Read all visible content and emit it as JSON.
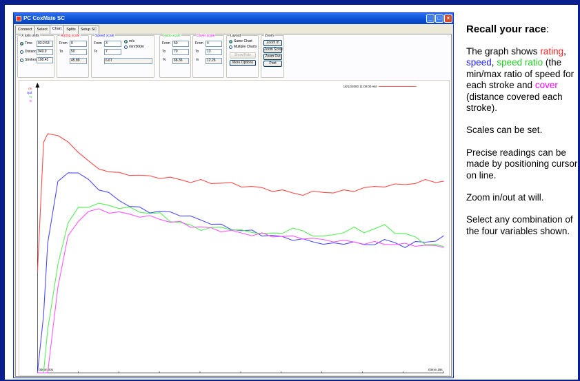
{
  "window": {
    "title": "PC CoxMate SC",
    "tabs": [
      "Connect",
      "Select",
      "Chart",
      "Splits",
      "Setup SC"
    ],
    "active_tab": "Chart"
  },
  "controls": {
    "x_axis": {
      "label": "X axis units",
      "options": [
        {
          "label": "Time",
          "value": "03:2:53",
          "selected": true
        },
        {
          "label": "Distance",
          "value": "949.9",
          "selected": false
        },
        {
          "label": "Strokes",
          "value": "108.45",
          "selected": false
        }
      ]
    },
    "rating_scale": {
      "label": "Rating scale",
      "from_label": "From",
      "from": "0",
      "to_label": "To",
      "to": "50",
      "readout": "45.89"
    },
    "speed_scale": {
      "label": "Speed scale",
      "from_label": "From",
      "from": "3",
      "to_label": "To",
      "to": "7",
      "readout": "6.67",
      "units": [
        "m/s",
        "min/500m"
      ]
    },
    "ratio_scale": {
      "label": "Ratio scale",
      "from_label": "From",
      "from": "50",
      "to_label": "To",
      "to": "70",
      "pct_label": "%",
      "readout": "68.36"
    },
    "cover_scale": {
      "label": "Cover scale",
      "from_label": "From",
      "from": "4",
      "to_label": "To",
      "to": "13",
      "m_label": "m",
      "readout": "12.26"
    },
    "layout": {
      "label": "Layout",
      "options": [
        "Same Chart",
        "Multiple Charts"
      ],
      "show_hide": "Show/Hide",
      "more": "More Options"
    },
    "zoom": {
      "label": "Zoom",
      "buttons": [
        "Zoom In",
        "Zoom Scroll",
        "Zoom Out",
        "Print"
      ]
    }
  },
  "chart_data": {
    "type": "line",
    "title": "",
    "timestamp": "18/12/2000 11:00:00 AM",
    "legend": [
      "rtn",
      "spd",
      "%",
      "m"
    ],
    "x_start_label": "00min 00s",
    "x_end_label": "03min 19s",
    "x_range_s": [
      0,
      199
    ],
    "x": [
      0,
      3,
      5,
      10,
      15,
      20,
      25,
      30,
      35,
      40,
      45,
      50,
      55,
      60,
      65,
      70,
      75,
      80,
      85,
      90,
      95,
      100,
      105,
      110,
      115,
      120,
      125,
      130,
      135,
      140,
      145,
      150,
      155,
      160,
      165,
      170,
      175,
      180,
      185,
      190,
      195,
      199
    ],
    "series": [
      {
        "name": "rtn",
        "color": "#ff4a4a",
        "values": [
          0.35,
          0.8,
          0.83,
          0.82,
          0.8,
          0.77,
          0.73,
          0.71,
          0.7,
          0.69,
          0.69,
          0.685,
          0.68,
          0.68,
          0.675,
          0.67,
          0.665,
          0.665,
          0.66,
          0.66,
          0.655,
          0.65,
          0.645,
          0.64,
          0.635,
          0.63,
          0.625,
          0.62,
          0.625,
          0.63,
          0.625,
          0.63,
          0.635,
          0.64,
          0.645,
          0.65,
          0.65,
          0.655,
          0.66,
          0.665,
          0.665,
          0.665
        ]
      },
      {
        "name": "spd",
        "color": "#4a4aff",
        "values": [
          0.0,
          0.2,
          0.45,
          0.66,
          0.7,
          0.69,
          0.67,
          0.64,
          0.62,
          0.6,
          0.58,
          0.57,
          0.56,
          0.56,
          0.555,
          0.55,
          0.54,
          0.53,
          0.52,
          0.51,
          0.5,
          0.495,
          0.49,
          0.48,
          0.475,
          0.47,
          0.465,
          0.46,
          0.455,
          0.45,
          0.445,
          0.45,
          0.455,
          0.44,
          0.45,
          0.46,
          0.45,
          0.44,
          0.45,
          0.455,
          0.46,
          0.47
        ]
      },
      {
        "name": "%",
        "color": "#55ee55",
        "values": [
          0.0,
          0.0,
          0.15,
          0.38,
          0.52,
          0.57,
          0.58,
          0.585,
          0.58,
          0.575,
          0.57,
          0.56,
          0.555,
          0.55,
          0.53,
          0.52,
          0.51,
          0.5,
          0.5,
          0.505,
          0.5,
          0.49,
          0.49,
          0.485,
          0.48,
          0.49,
          0.5,
          0.49,
          0.48,
          0.47,
          0.48,
          0.49,
          0.5,
          0.49,
          0.5,
          0.51,
          0.49,
          0.48,
          0.47,
          0.45,
          0.44,
          0.44
        ]
      },
      {
        "name": "m",
        "color": "#ff55ff",
        "values": [
          0.0,
          0.0,
          0.0,
          0.3,
          0.47,
          0.53,
          0.56,
          0.565,
          0.56,
          0.555,
          0.55,
          0.545,
          0.54,
          0.535,
          0.525,
          0.52,
          0.51,
          0.505,
          0.5,
          0.495,
          0.49,
          0.485,
          0.48,
          0.48,
          0.475,
          0.475,
          0.47,
          0.47,
          0.465,
          0.46,
          0.46,
          0.455,
          0.455,
          0.45,
          0.45,
          0.45,
          0.445,
          0.445,
          0.445,
          0.44,
          0.44,
          0.44
        ]
      }
    ]
  },
  "side": {
    "title": "Recall your race",
    "colon": ":",
    "p1": {
      "a": "The graph shows ",
      "rating": "rating",
      "b": ", ",
      "speed": "speed",
      "c": ", ",
      "ratio": "speed ratio",
      "d": " (the min/max ratio of speed for each stroke and ",
      "cover": "cover",
      "e": " (distance covered each stroke)."
    },
    "p2": "Scales can be set.",
    "p3": "Precise readings can be made by positioning cursor on line.",
    "p4": "Zoom in/out at will.",
    "p5": "Select any combination of the four variables shown."
  },
  "colors": {
    "frame": "#0a1f8f",
    "titlebar": "#0a4fd4"
  }
}
